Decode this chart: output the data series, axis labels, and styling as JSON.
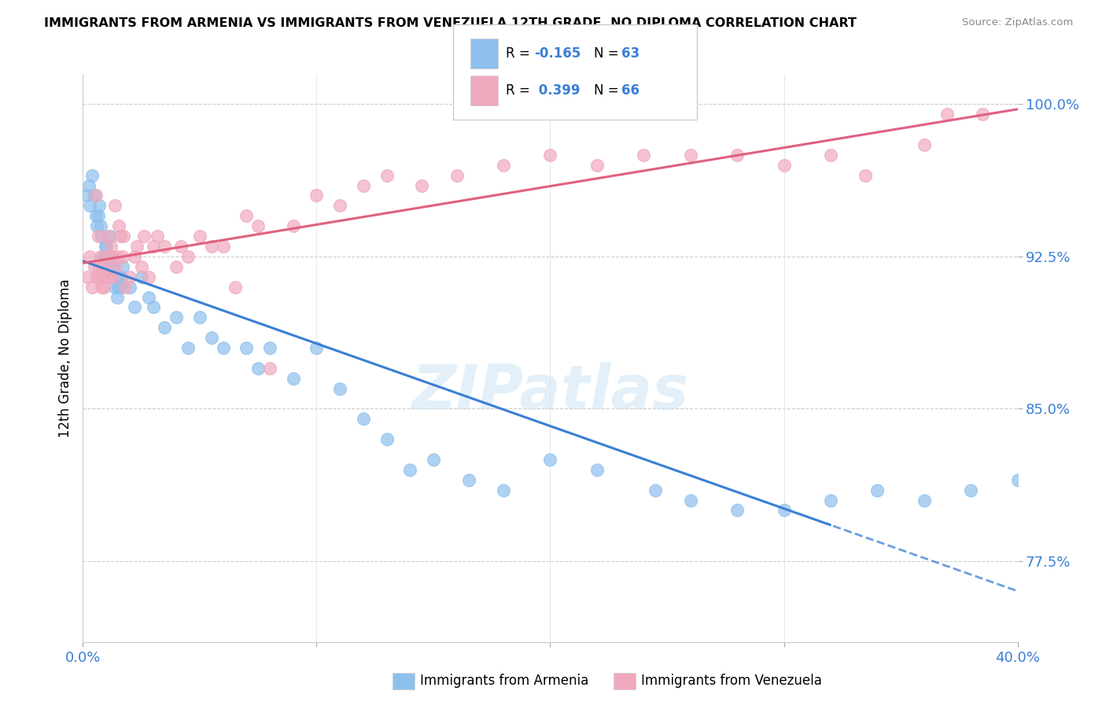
{
  "title": "IMMIGRANTS FROM ARMENIA VS IMMIGRANTS FROM VENEZUELA 12TH GRADE, NO DIPLOMA CORRELATION CHART",
  "source": "Source: ZipAtlas.com",
  "armenia_color": "#8ec0ed",
  "venezuela_color": "#f0a8bc",
  "armenia_line_color": "#3a7fd5",
  "venezuela_line_color": "#e06080",
  "xlim": [
    0.0,
    40.0
  ],
  "ylim": [
    73.5,
    101.5
  ],
  "yticks": [
    77.5,
    85.0,
    92.5,
    100.0
  ],
  "ytick_labels": [
    "77.5%",
    "85.0%",
    "92.5%",
    "100.0%"
  ],
  "xtick_labels_show": [
    "0.0%",
    "40.0%"
  ],
  "xtick_positions": [
    0.0,
    10.0,
    20.0,
    30.0,
    40.0
  ],
  "watermark": "ZIPatlas",
  "armenia_R": -0.165,
  "armenia_N": 63,
  "venezuela_R": 0.399,
  "venezuela_N": 66,
  "armenia_x": [
    0.15,
    0.25,
    0.3,
    0.4,
    0.5,
    0.55,
    0.6,
    0.65,
    0.7,
    0.75,
    0.8,
    0.85,
    0.9,
    0.95,
    1.0,
    1.05,
    1.1,
    1.15,
    1.2,
    1.25,
    1.3,
    1.35,
    1.4,
    1.45,
    1.5,
    1.55,
    1.6,
    1.65,
    1.7,
    2.0,
    2.2,
    2.5,
    2.8,
    3.0,
    3.5,
    4.0,
    4.5,
    5.0,
    5.5,
    6.0,
    7.0,
    7.5,
    8.0,
    9.0,
    10.0,
    11.0,
    12.0,
    13.0,
    14.0,
    15.0,
    16.5,
    18.0,
    20.0,
    22.0,
    24.5,
    26.0,
    28.0,
    30.0,
    32.0,
    34.0,
    36.0,
    38.0,
    40.0
  ],
  "armenia_y": [
    95.5,
    96.0,
    95.0,
    96.5,
    95.5,
    94.5,
    94.0,
    94.5,
    95.0,
    94.0,
    93.5,
    92.5,
    92.5,
    93.0,
    93.0,
    92.5,
    92.0,
    93.5,
    92.5,
    91.5,
    92.0,
    91.0,
    91.5,
    90.5,
    91.0,
    91.5,
    91.0,
    91.5,
    92.0,
    91.0,
    90.0,
    91.5,
    90.5,
    90.0,
    89.0,
    89.5,
    88.0,
    89.5,
    88.5,
    88.0,
    88.0,
    87.0,
    88.0,
    86.5,
    88.0,
    86.0,
    84.5,
    83.5,
    82.0,
    82.5,
    81.5,
    81.0,
    82.5,
    82.0,
    81.0,
    80.5,
    80.0,
    80.0,
    80.5,
    81.0,
    80.5,
    81.0,
    81.5
  ],
  "venezuela_x": [
    0.2,
    0.3,
    0.4,
    0.5,
    0.6,
    0.65,
    0.7,
    0.75,
    0.8,
    0.85,
    0.9,
    0.95,
    1.0,
    1.1,
    1.2,
    1.3,
    1.4,
    1.5,
    1.6,
    1.7,
    1.8,
    2.0,
    2.2,
    2.5,
    2.8,
    3.0,
    3.5,
    4.0,
    4.5,
    5.0,
    5.5,
    6.0,
    7.0,
    7.5,
    8.0,
    9.0,
    10.0,
    11.0,
    12.0,
    13.0,
    14.5,
    16.0,
    18.0,
    20.0,
    22.0,
    24.0,
    26.0,
    28.0,
    30.0,
    32.0,
    33.5,
    36.0,
    37.0,
    38.5,
    0.55,
    0.65,
    1.05,
    1.25,
    1.35,
    1.55,
    1.75,
    2.3,
    2.6,
    3.2,
    4.2,
    6.5
  ],
  "venezuela_y": [
    91.5,
    92.5,
    91.0,
    92.0,
    91.5,
    92.0,
    91.5,
    92.5,
    91.0,
    91.5,
    91.0,
    92.0,
    92.5,
    91.5,
    93.0,
    91.5,
    92.0,
    92.5,
    93.5,
    92.5,
    91.0,
    91.5,
    92.5,
    92.0,
    91.5,
    93.0,
    93.0,
    92.0,
    92.5,
    93.5,
    93.0,
    93.0,
    94.5,
    94.0,
    87.0,
    94.0,
    95.5,
    95.0,
    96.0,
    96.5,
    96.0,
    96.5,
    97.0,
    97.5,
    97.0,
    97.5,
    97.5,
    97.5,
    97.0,
    97.5,
    96.5,
    98.0,
    99.5,
    99.5,
    95.5,
    93.5,
    93.5,
    92.5,
    95.0,
    94.0,
    93.5,
    93.0,
    93.5,
    93.5,
    93.0,
    91.0
  ]
}
